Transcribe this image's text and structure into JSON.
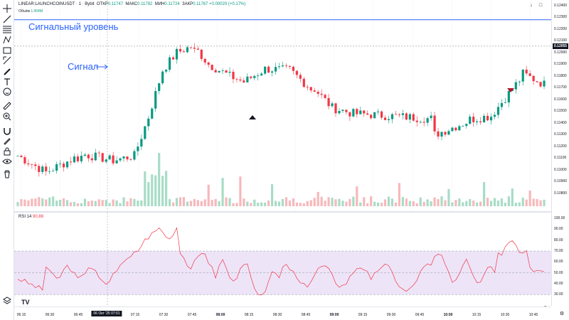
{
  "legend": {
    "symbol": "LINEAR:LAUNCHCOINUSDT · 1 · Bybit",
    "open_label": "ОТКР",
    "open_value": "0.11747",
    "high_label": "МАКС",
    "high_value": "0.11782",
    "low_label": "МИН",
    "low_value": "0.11724",
    "close_label": "ЗАКР",
    "close_value": "0.11767 +0.00020 (+0.17%)",
    "volume_label": "Объём",
    "volume_value": "1.064M"
  },
  "rsi": {
    "label": "RSI 14",
    "value": "90.88"
  },
  "annotations": {
    "level_text": "Сигнальный уровень",
    "signal_text": "Сигнал"
  },
  "price_axis": [
    "0.12400",
    "0.12300",
    "0.12200",
    "0.12100",
    "0.12000",
    "0.11900",
    "0.11800",
    "0.11700",
    "0.11600",
    "0.11500",
    "0.11400",
    "0.11300",
    "0.11200",
    "0.11100",
    "0.11000",
    "0.10900",
    "0.10800"
  ],
  "current_price_tag": "0.12055",
  "rsi_axis": [
    "100.00",
    "90.00",
    "80.00",
    "70.00",
    "60.00",
    "50.00",
    "40.00",
    "30.00"
  ],
  "time_axis": {
    "labels": [
      "06:15",
      "06:30",
      "06:45",
      "07:15",
      "07:30",
      "07:45",
      "08:00",
      "08:15",
      "08:30",
      "08:45",
      "09:00",
      "09:15",
      "09:30",
      "09:45",
      "10:00",
      "10:15",
      "10:30",
      "10:45"
    ],
    "bold_labels": [
      "08:00",
      "09:00",
      "10:00"
    ],
    "cursor_label": "06 Окт '25  07:01"
  },
  "colors": {
    "up": "#089981",
    "down": "#f23645",
    "up_light": "#a8dcc6",
    "down_light": "#f7b8bb",
    "rsi_line": "#f23645",
    "rsi_band": "#ede4f8",
    "level_line": "#2962ff"
  },
  "icons": [
    "crosshair-icon",
    "trend-line-icon",
    "fib-icon",
    "pattern-icon",
    "projection-icon",
    "measure-icon",
    "brush-icon",
    "text-icon",
    "emoji-icon",
    "ruler-icon",
    "zoom-icon",
    "magnet-icon",
    "lock-icon",
    "eye-icon",
    "trash-icon"
  ],
  "chart_data": {
    "type": "candlestick",
    "ylim": [
      0.1075,
      0.124
    ],
    "signal_level": 0.1228,
    "candle_count": 150,
    "rsi_bands": [
      30,
      70
    ]
  }
}
